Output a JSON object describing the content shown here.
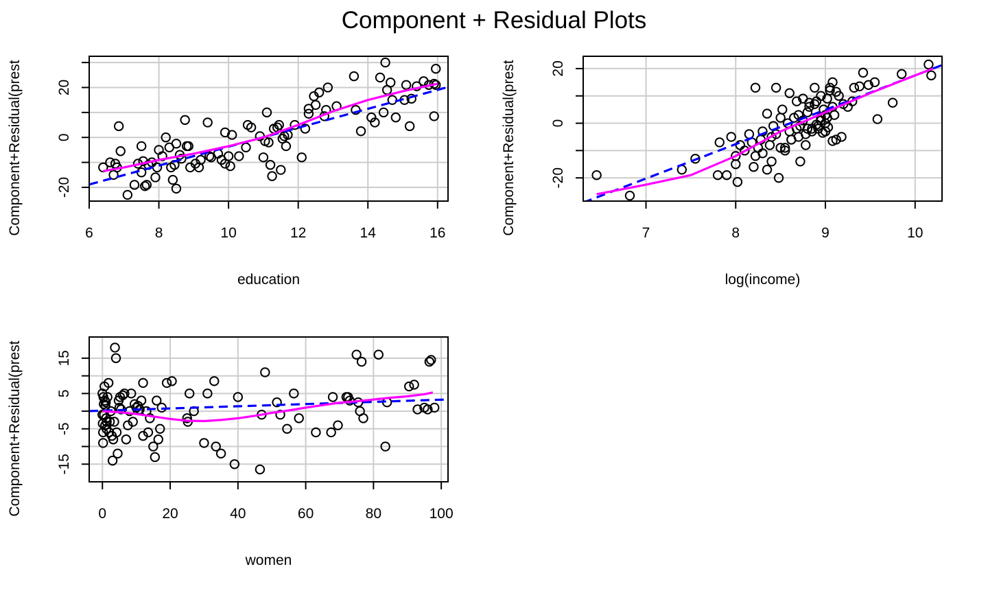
{
  "figure": {
    "title": "Component + Residual Plots"
  },
  "chart_data": [
    {
      "type": "scatter",
      "xlabel": "education",
      "ylabel": "Component+Residual(prest",
      "xlim": [
        6.0,
        16.3
      ],
      "ylim": [
        -25.5,
        32.5
      ],
      "xticks": [
        6,
        8,
        10,
        12,
        14,
        16
      ],
      "yticks": [
        -20,
        -10,
        0,
        10,
        20,
        30
      ],
      "ytick_labels": [
        "-20",
        "",
        "0",
        "",
        "20",
        ""
      ],
      "grid": true,
      "colors": {
        "points": "#000000",
        "linear_fit": "#0000ff",
        "smooth_fit": "#ff00ff",
        "grid": "#cccccc"
      },
      "points": [
        [
          6.4,
          -12
        ],
        [
          6.6,
          -10
        ],
        [
          6.7,
          -15
        ],
        [
          6.75,
          -10.5
        ],
        [
          6.8,
          -12
        ],
        [
          6.85,
          4.5
        ],
        [
          6.9,
          -5.5
        ],
        [
          7.1,
          -23
        ],
        [
          7.3,
          -19
        ],
        [
          7.4,
          -10.5
        ],
        [
          7.5,
          -3.5
        ],
        [
          7.5,
          -14
        ],
        [
          7.55,
          -9.5
        ],
        [
          7.6,
          -19.5
        ],
        [
          7.65,
          -19
        ],
        [
          7.7,
          -11
        ],
        [
          7.8,
          -10
        ],
        [
          7.9,
          -16
        ],
        [
          7.95,
          -12
        ],
        [
          8.0,
          -5
        ],
        [
          8.1,
          -7.5
        ],
        [
          8.2,
          0
        ],
        [
          8.3,
          -4
        ],
        [
          8.35,
          -12
        ],
        [
          8.4,
          -17
        ],
        [
          8.45,
          -11
        ],
        [
          8.5,
          -20.5
        ],
        [
          8.5,
          -2.5
        ],
        [
          8.6,
          -7
        ],
        [
          8.65,
          -8.5
        ],
        [
          8.75,
          7
        ],
        [
          8.8,
          -3.5
        ],
        [
          8.85,
          -3.5
        ],
        [
          8.9,
          -12
        ],
        [
          9.05,
          -10.5
        ],
        [
          9.15,
          -12
        ],
        [
          9.2,
          -9
        ],
        [
          9.4,
          6
        ],
        [
          9.45,
          -7.5
        ],
        [
          9.5,
          -8
        ],
        [
          9.7,
          -6.5
        ],
        [
          9.8,
          -9
        ],
        [
          9.9,
          -10.5
        ],
        [
          9.9,
          2
        ],
        [
          10.0,
          -7.5
        ],
        [
          10.05,
          -11.5
        ],
        [
          10.1,
          1
        ],
        [
          10.3,
          -7.5
        ],
        [
          10.5,
          -4
        ],
        [
          10.55,
          5
        ],
        [
          10.65,
          4
        ],
        [
          10.9,
          0.5
        ],
        [
          11.0,
          -8
        ],
        [
          11.05,
          -1.5
        ],
        [
          11.1,
          10
        ],
        [
          11.15,
          -2
        ],
        [
          11.2,
          -11
        ],
        [
          11.25,
          -15.5
        ],
        [
          11.3,
          3.5
        ],
        [
          11.4,
          4
        ],
        [
          11.45,
          5
        ],
        [
          11.5,
          -13
        ],
        [
          11.55,
          -0.5
        ],
        [
          11.6,
          0.5
        ],
        [
          11.65,
          -3.5
        ],
        [
          11.7,
          1
        ],
        [
          11.9,
          5
        ],
        [
          12.1,
          -8
        ],
        [
          12.2,
          3.5
        ],
        [
          12.3,
          9.5
        ],
        [
          12.3,
          11.5
        ],
        [
          12.45,
          16.5
        ],
        [
          12.5,
          13
        ],
        [
          12.6,
          18
        ],
        [
          12.75,
          8.5
        ],
        [
          12.8,
          11
        ],
        [
          12.85,
          20
        ],
        [
          13.1,
          12.5
        ],
        [
          13.6,
          24.5
        ],
        [
          13.65,
          11
        ],
        [
          13.8,
          2.5
        ],
        [
          14.1,
          8
        ],
        [
          14.2,
          6
        ],
        [
          14.35,
          24
        ],
        [
          14.45,
          10
        ],
        [
          14.5,
          30
        ],
        [
          14.55,
          19
        ],
        [
          14.65,
          22
        ],
        [
          14.7,
          15
        ],
        [
          14.8,
          8
        ],
        [
          15.05,
          15
        ],
        [
          15.1,
          21
        ],
        [
          15.2,
          4.5
        ],
        [
          15.25,
          15.5
        ],
        [
          15.4,
          20.5
        ],
        [
          15.6,
          22.5
        ],
        [
          15.75,
          21
        ],
        [
          15.9,
          8.5
        ],
        [
          15.95,
          27.5
        ],
        [
          15.95,
          21
        ],
        [
          15.9,
          21.5
        ]
      ],
      "linear_fit": {
        "intercept": -41.6,
        "slope": 3.79
      },
      "smooth_fit": [
        [
          6.4,
          -13.5
        ],
        [
          7,
          -12
        ],
        [
          8,
          -9
        ],
        [
          9,
          -6.5
        ],
        [
          10,
          -3.5
        ],
        [
          11,
          0
        ],
        [
          12,
          5
        ],
        [
          13,
          10.5
        ],
        [
          14,
          15
        ],
        [
          15,
          18.5
        ],
        [
          16,
          21.5
        ]
      ]
    },
    {
      "type": "scatter",
      "xlabel": "log(income)",
      "ylabel": "Component+Residual(prest",
      "xlim": [
        6.3,
        10.3
      ],
      "ylim": [
        -28.5,
        24.5
      ],
      "xticks": [
        7,
        8,
        9,
        10
      ],
      "yticks": [
        -20,
        -10,
        0,
        10,
        20
      ],
      "ytick_labels": [
        "-20",
        "",
        "0",
        "",
        "20"
      ],
      "grid": true,
      "colors": {
        "points": "#000000",
        "linear_fit": "#0000ff",
        "smooth_fit": "#ff00ff",
        "grid": "#cccccc"
      },
      "points": [
        [
          6.45,
          -19
        ],
        [
          6.82,
          -26.5
        ],
        [
          7.4,
          -17
        ],
        [
          7.55,
          -13
        ],
        [
          7.8,
          -19
        ],
        [
          7.82,
          -7
        ],
        [
          7.9,
          -19
        ],
        [
          7.95,
          -5
        ],
        [
          8.0,
          -12
        ],
        [
          8.0,
          -15
        ],
        [
          8.02,
          -21.5
        ],
        [
          8.05,
          -8
        ],
        [
          8.1,
          -10
        ],
        [
          8.15,
          -4
        ],
        [
          8.18,
          -7
        ],
        [
          8.2,
          -16
        ],
        [
          8.22,
          -12
        ],
        [
          8.25,
          -9
        ],
        [
          8.28,
          -6
        ],
        [
          8.3,
          -11
        ],
        [
          8.35,
          -17
        ],
        [
          8.38,
          -8
        ],
        [
          8.4,
          -14
        ],
        [
          8.42,
          -1
        ],
        [
          8.45,
          -4
        ],
        [
          8.5,
          -9
        ],
        [
          8.5,
          2
        ],
        [
          8.52,
          5
        ],
        [
          8.55,
          -10
        ],
        [
          8.58,
          0
        ],
        [
          8.6,
          -3
        ],
        [
          8.62,
          -6
        ],
        [
          8.65,
          2
        ],
        [
          8.68,
          -2
        ],
        [
          8.7,
          3
        ],
        [
          8.72,
          -1
        ],
        [
          8.75,
          1
        ],
        [
          8.78,
          -4
        ],
        [
          8.8,
          4
        ],
        [
          8.82,
          6
        ],
        [
          8.85,
          -2
        ],
        [
          8.88,
          7
        ],
        [
          8.9,
          8
        ],
        [
          8.92,
          -1
        ],
        [
          8.95,
          2
        ],
        [
          8.98,
          5
        ],
        [
          9.0,
          0
        ],
        [
          9.0,
          3
        ],
        [
          9.02,
          9
        ],
        [
          9.05,
          12
        ],
        [
          9.08,
          6
        ],
        [
          9.1,
          3
        ],
        [
          9.12,
          -6
        ],
        [
          9.15,
          10
        ],
        [
          9.18,
          -5
        ],
        [
          9.2,
          7
        ],
        [
          9.25,
          6
        ],
        [
          9.3,
          8
        ],
        [
          9.32,
          13
        ],
        [
          9.38,
          13.5
        ],
        [
          9.42,
          18.5
        ],
        [
          9.48,
          14
        ],
        [
          9.55,
          15
        ],
        [
          9.58,
          1.5
        ],
        [
          9.75,
          7.5
        ],
        [
          9.85,
          18
        ],
        [
          10.15,
          21.5
        ],
        [
          10.18,
          17.5
        ],
        [
          8.22,
          13
        ],
        [
          8.3,
          -3
        ],
        [
          8.4,
          -5
        ],
        [
          8.45,
          13
        ],
        [
          8.35,
          3.5
        ],
        [
          8.6,
          11
        ],
        [
          8.75,
          9
        ],
        [
          8.68,
          8
        ],
        [
          8.82,
          7.5
        ],
        [
          8.88,
          13
        ],
        [
          8.95,
          10
        ],
        [
          9.05,
          13
        ],
        [
          9.08,
          15
        ],
        [
          9.12,
          11.5
        ],
        [
          8.92,
          -2
        ],
        [
          8.97,
          -3.5
        ],
        [
          9.03,
          -1.5
        ],
        [
          8.85,
          -3
        ],
        [
          8.78,
          -8
        ],
        [
          8.72,
          -14
        ],
        [
          8.48,
          -20
        ],
        [
          8.62,
          -6
        ],
        [
          8.55,
          -9
        ],
        [
          8.7,
          -5
        ],
        [
          8.8,
          -2
        ],
        [
          8.95,
          1
        ],
        [
          9.02,
          2
        ],
        [
          9.08,
          -6.5
        ],
        [
          9.0,
          -3
        ],
        [
          8.9,
          -0.5
        ]
      ],
      "linear_fit": {
        "intercept": -108.3,
        "slope": 12.58
      },
      "smooth_fit": [
        [
          6.45,
          -26
        ],
        [
          7,
          -22.5
        ],
        [
          7.5,
          -19
        ],
        [
          8,
          -12
        ],
        [
          8.5,
          -3
        ],
        [
          9,
          4
        ],
        [
          9.5,
          11
        ],
        [
          10,
          17.5
        ],
        [
          10.2,
          20
        ]
      ]
    },
    {
      "type": "scatter",
      "xlabel": "women",
      "ylabel": "Component+Residual(prest",
      "xlim": [
        -3.9,
        102
      ],
      "ylim": [
        -20,
        21
      ],
      "xticks": [
        0,
        20,
        40,
        60,
        80,
        100
      ],
      "yticks": [
        -15,
        -10,
        -5,
        0,
        5,
        10,
        15
      ],
      "ytick_labels": [
        "-15",
        "",
        "-5",
        "",
        "5",
        "",
        "15"
      ],
      "grid": true,
      "colors": {
        "points": "#000000",
        "linear_fit": "#0000ff",
        "smooth_fit": "#ff00ff",
        "grid": "#cccccc"
      },
      "points": [
        [
          0,
          5
        ],
        [
          0,
          -1
        ],
        [
          0.1,
          -3.5
        ],
        [
          0.2,
          -6
        ],
        [
          0.2,
          -9
        ],
        [
          0.3,
          4
        ],
        [
          0.4,
          2
        ],
        [
          0.5,
          -1
        ],
        [
          0.6,
          7
        ],
        [
          0.7,
          3
        ],
        [
          0.8,
          -4
        ],
        [
          0.9,
          1.5
        ],
        [
          1,
          2.5
        ],
        [
          1.1,
          -2
        ],
        [
          1.2,
          -5
        ],
        [
          1.3,
          -3
        ],
        [
          1.5,
          4
        ],
        [
          1.8,
          8
        ],
        [
          2,
          -6
        ],
        [
          2.2,
          -3
        ],
        [
          2.5,
          0
        ],
        [
          2.8,
          -7
        ],
        [
          3,
          -14
        ],
        [
          3.2,
          -8
        ],
        [
          3.5,
          -3
        ],
        [
          3.7,
          18
        ],
        [
          4,
          15
        ],
        [
          4.2,
          -6
        ],
        [
          4.5,
          -12
        ],
        [
          4.8,
          3
        ],
        [
          5,
          1
        ],
        [
          5.2,
          4
        ],
        [
          5.5,
          0.5
        ],
        [
          6,
          4.5
        ],
        [
          6.5,
          5
        ],
        [
          7,
          -8
        ],
        [
          7.5,
          -4
        ],
        [
          8,
          0
        ],
        [
          8.5,
          5
        ],
        [
          9,
          -3
        ],
        [
          9.5,
          2
        ],
        [
          10,
          1
        ],
        [
          10.5,
          1.5
        ],
        [
          11,
          0.5
        ],
        [
          11.5,
          3
        ],
        [
          12,
          -7
        ],
        [
          12,
          8
        ],
        [
          13,
          0
        ],
        [
          13.5,
          -6
        ],
        [
          14,
          -2
        ],
        [
          15,
          -10
        ],
        [
          15.5,
          -13
        ],
        [
          16,
          3
        ],
        [
          16.5,
          -8
        ],
        [
          17,
          -5
        ],
        [
          17.5,
          1
        ],
        [
          19,
          8
        ],
        [
          20.5,
          8.5
        ],
        [
          25,
          -2
        ],
        [
          25.2,
          -3
        ],
        [
          25.7,
          5
        ],
        [
          27,
          0
        ],
        [
          30,
          -9
        ],
        [
          31,
          5
        ],
        [
          33,
          8.5
        ],
        [
          33.5,
          -10
        ],
        [
          35,
          -12
        ],
        [
          39,
          -15
        ],
        [
          40,
          4
        ],
        [
          46.5,
          -16.5
        ],
        [
          47,
          -1
        ],
        [
          48,
          11
        ],
        [
          51.5,
          2.5
        ],
        [
          52.5,
          -1
        ],
        [
          54.5,
          -5
        ],
        [
          56.5,
          5
        ],
        [
          58,
          -2
        ],
        [
          63,
          -6
        ],
        [
          67.5,
          -6
        ],
        [
          68,
          4
        ],
        [
          69.5,
          -4
        ],
        [
          72,
          4
        ],
        [
          72.5,
          4
        ],
        [
          73,
          3
        ],
        [
          75,
          16
        ],
        [
          75.5,
          2.5
        ],
        [
          76,
          0
        ],
        [
          76.5,
          14
        ],
        [
          77,
          -2
        ],
        [
          81.5,
          16
        ],
        [
          83.5,
          -10
        ],
        [
          84,
          2.5
        ],
        [
          90.5,
          7
        ],
        [
          92,
          7.5
        ],
        [
          93,
          0.5
        ],
        [
          95,
          1
        ],
        [
          96,
          0.5
        ],
        [
          96.5,
          14
        ],
        [
          97,
          14.5
        ],
        [
          98,
          1
        ]
      ],
      "linear_fit": {
        "intercept": 0.15,
        "slope": 0.031
      },
      "smooth_fit": [
        [
          0,
          0
        ],
        [
          5,
          -0.3
        ],
        [
          10,
          -0.8
        ],
        [
          15,
          -1.5
        ],
        [
          20,
          -2.2
        ],
        [
          25,
          -2.7
        ],
        [
          30,
          -2.8
        ],
        [
          35,
          -2.5
        ],
        [
          40,
          -2
        ],
        [
          45,
          -1.3
        ],
        [
          50,
          -0.5
        ],
        [
          55,
          0.2
        ],
        [
          60,
          1
        ],
        [
          65,
          1.7
        ],
        [
          70,
          2.4
        ],
        [
          75,
          2.8
        ],
        [
          80,
          3.3
        ],
        [
          85,
          3.8
        ],
        [
          90,
          4.2
        ],
        [
          95,
          4.8
        ],
        [
          97.5,
          5.3
        ]
      ]
    }
  ]
}
